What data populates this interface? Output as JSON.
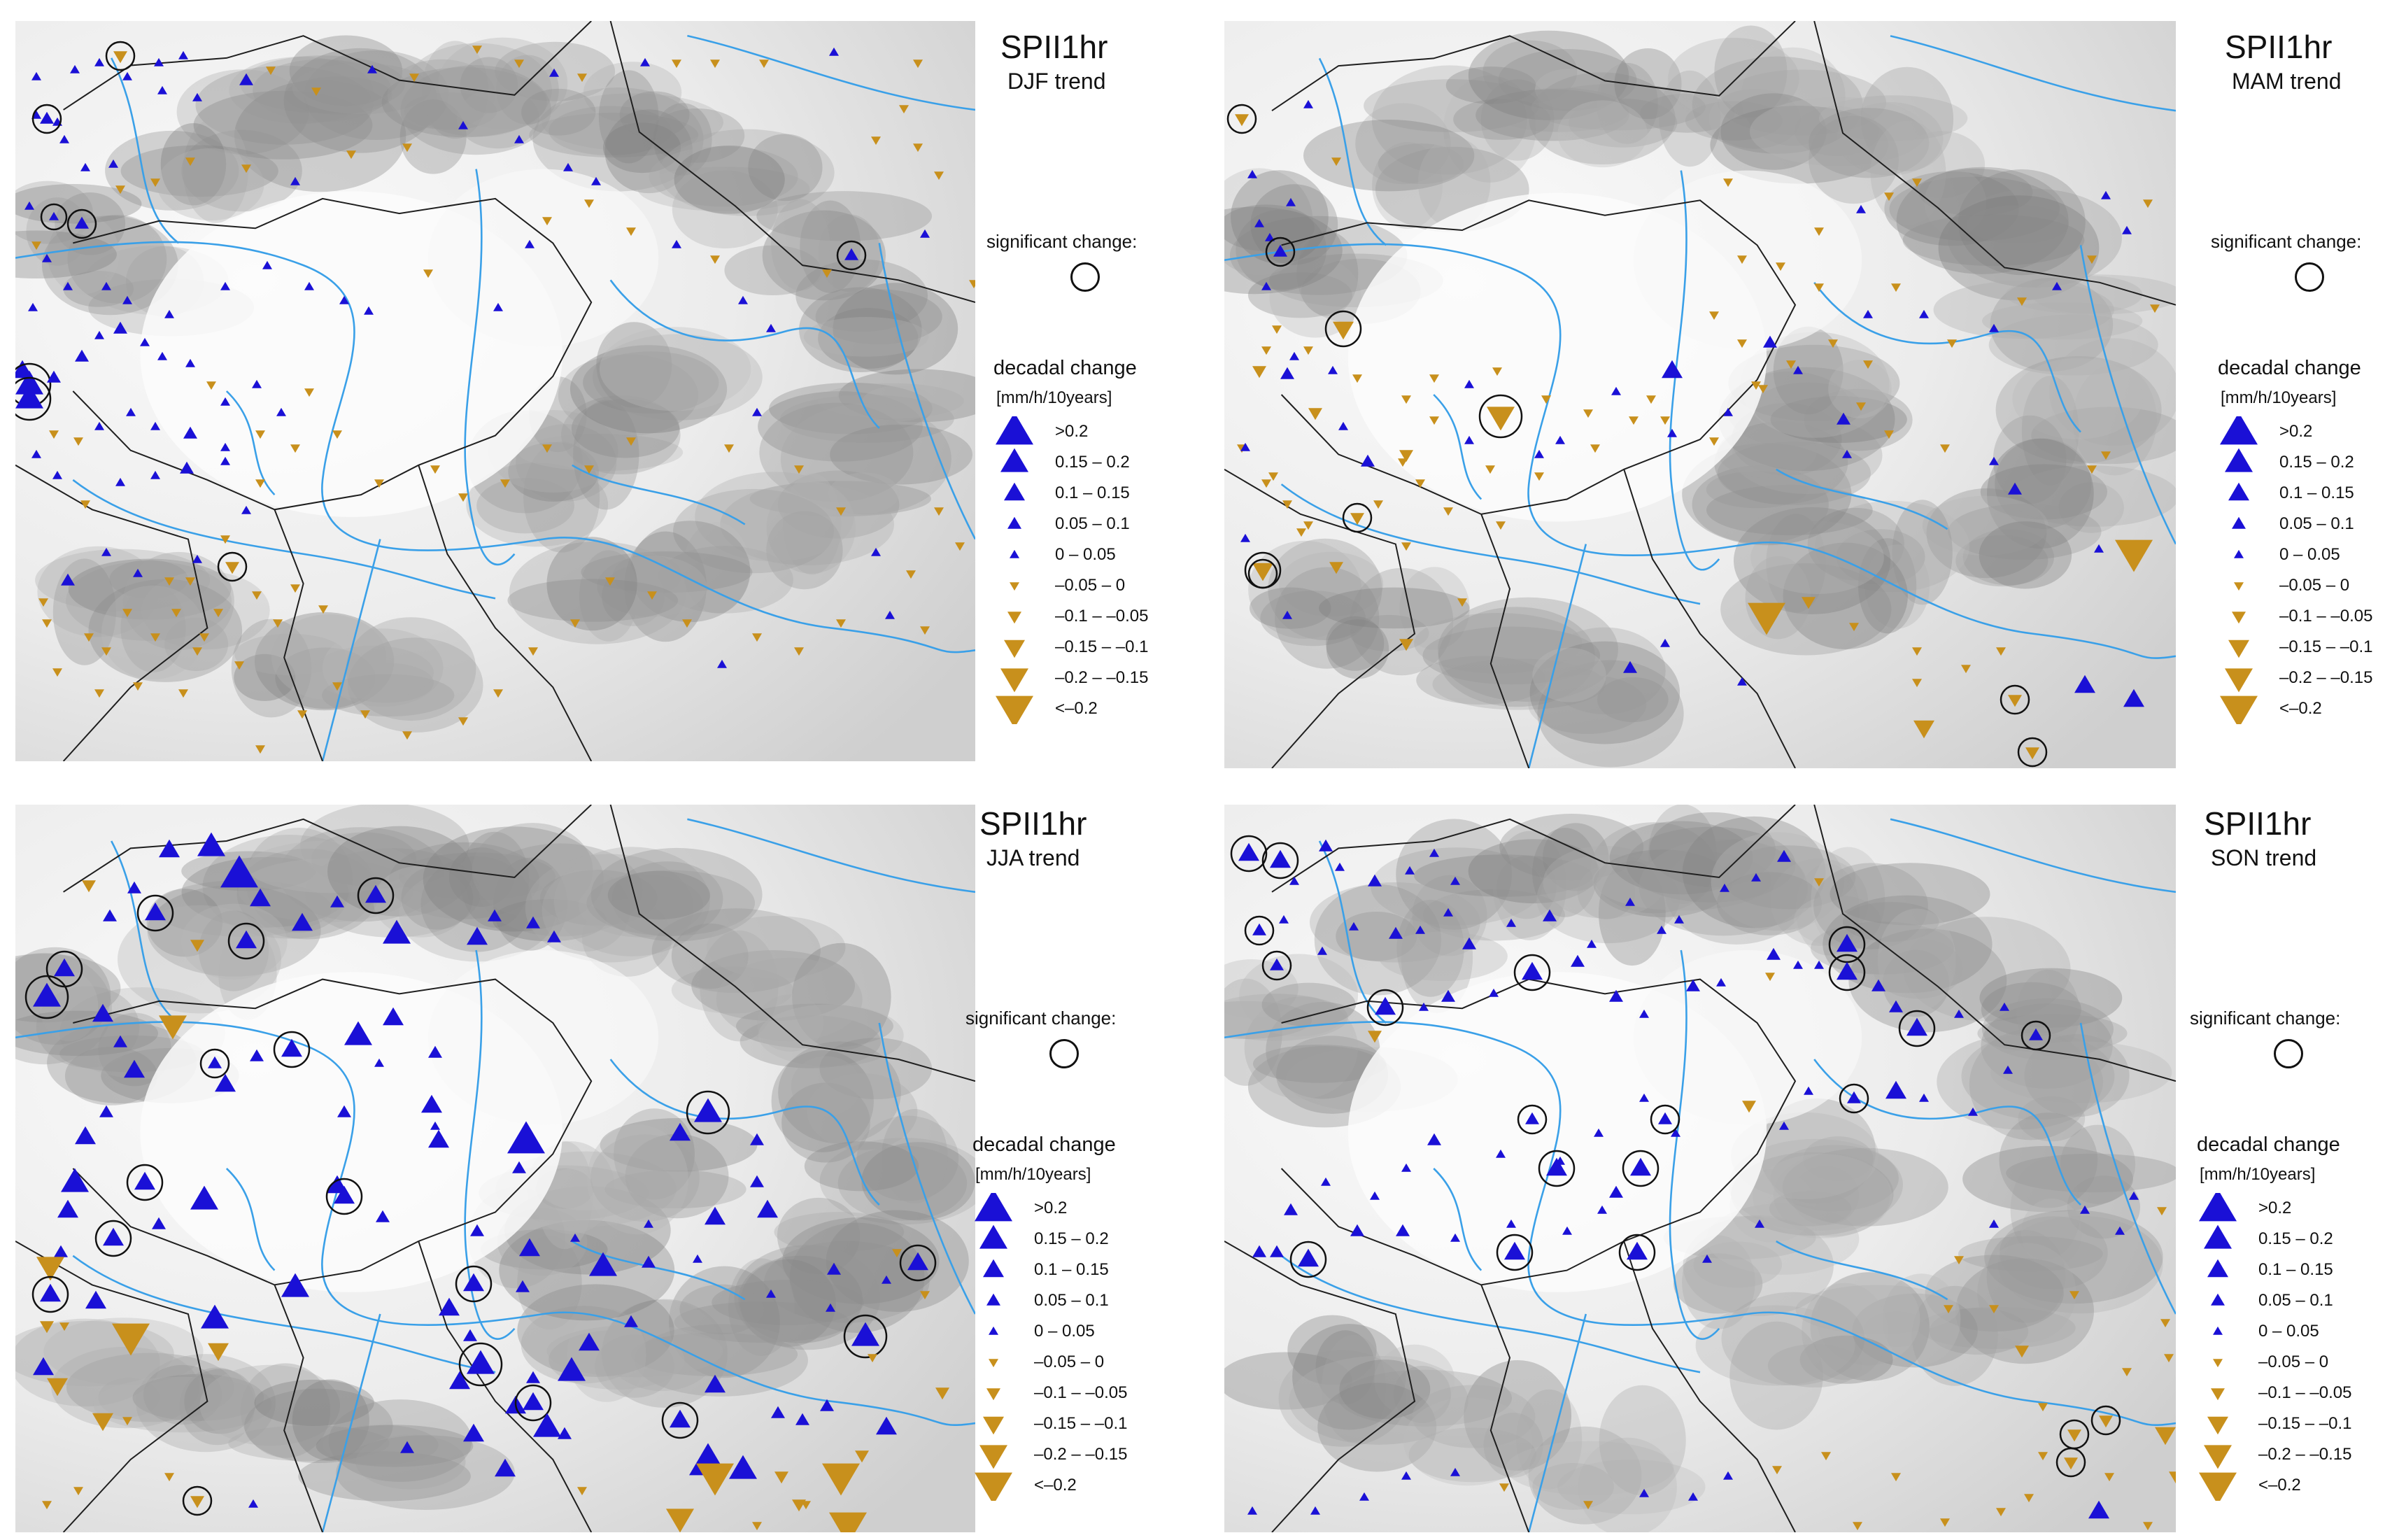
{
  "panels": [
    {
      "title": "SPII1hr",
      "season": "DJF trend"
    },
    {
      "title": "SPII1hr",
      "season": "MAM trend"
    },
    {
      "title": "SPII1hr",
      "season": "JJA trend"
    },
    {
      "title": "SPII1hr",
      "season": "SON trend"
    }
  ],
  "legend": {
    "significant_label": "significant change:",
    "decadal_label": "decadal change",
    "unit_label": "[mm/h/10years]",
    "classes": [
      {
        "label": ">0.2",
        "color": "#1a10d6",
        "direction": "up",
        "size": 5
      },
      {
        "label": "0.15 – 0.2",
        "color": "#1a10d6",
        "direction": "up",
        "size": 4
      },
      {
        "label": "0.1 – 0.15",
        "color": "#1a10d6",
        "direction": "up",
        "size": 3
      },
      {
        "label": "0.05 – 0.1",
        "color": "#1a10d6",
        "direction": "up",
        "size": 2
      },
      {
        "label": "0 – 0.05",
        "color": "#1a10d6",
        "direction": "up",
        "size": 1
      },
      {
        "label": "–0.05 – 0",
        "color": "#c8901c",
        "direction": "down",
        "size": 1
      },
      {
        "label": "–0.1 – –0.05",
        "color": "#c8901c",
        "direction": "down",
        "size": 2
      },
      {
        "label": "–0.15 – –0.1",
        "color": "#c8901c",
        "direction": "down",
        "size": 3
      },
      {
        "label": "–0.2 – –0.15",
        "color": "#c8901c",
        "direction": "down",
        "size": 4
      },
      {
        "label": "<–0.2",
        "color": "#c8901c",
        "direction": "down",
        "size": 5
      }
    ]
  },
  "colors": {
    "increase": "#1a10d6",
    "decrease": "#c8901c",
    "river": "#3aa0e8",
    "border": "#1f1f1f",
    "terrain_light": "#f4f4f4",
    "terrain_dark": "#7a7a7a"
  }
}
